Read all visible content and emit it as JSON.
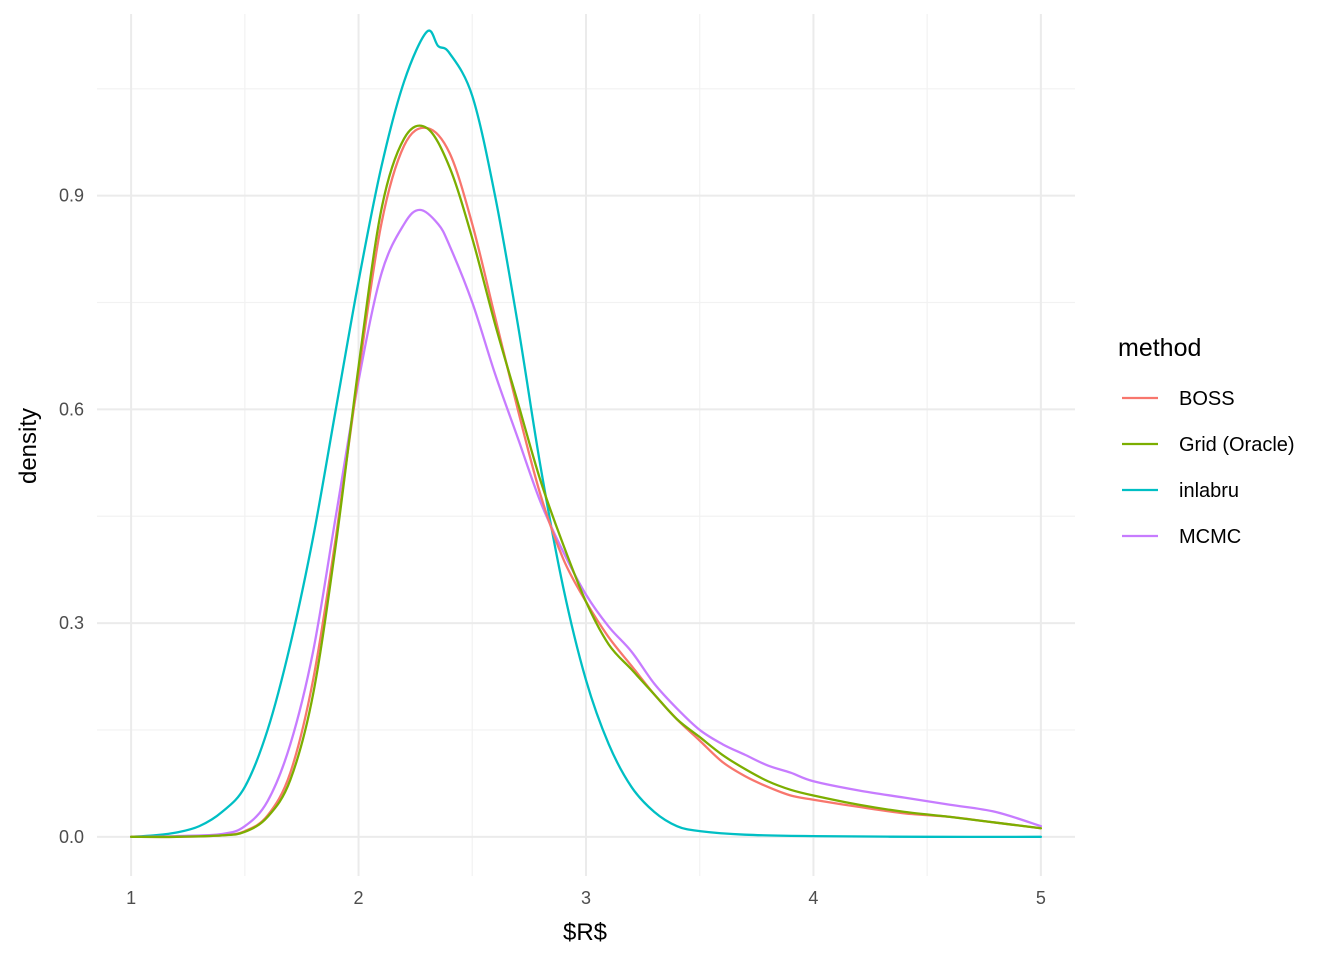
{
  "chart_data": {
    "type": "line",
    "title": "",
    "xlabel": "$R$",
    "ylabel": "density",
    "xlim": [
      0.85,
      5.15
    ],
    "ylim": [
      -0.055,
      1.155
    ],
    "x_ticks": [
      1,
      2,
      3,
      4,
      5
    ],
    "x_tick_labels": [
      "1",
      "2",
      "3",
      "4",
      "5"
    ],
    "y_ticks": [
      0.0,
      0.3,
      0.6,
      0.9
    ],
    "y_tick_labels": [
      "0.0",
      "0.3",
      "0.6",
      "0.9"
    ],
    "grid": true,
    "legend": {
      "title": "method",
      "position": "right"
    },
    "series": [
      {
        "name": "BOSS",
        "color": "#F8766D",
        "x": [
          1.0,
          1.2,
          1.4,
          1.5,
          1.6,
          1.7,
          1.8,
          1.9,
          2.0,
          2.1,
          2.2,
          2.3,
          2.4,
          2.5,
          2.6,
          2.7,
          2.8,
          2.9,
          3.0,
          3.1,
          3.2,
          3.3,
          3.4,
          3.5,
          3.6,
          3.7,
          3.8,
          3.9,
          4.0,
          4.2,
          4.4,
          4.6,
          4.8,
          5.0
        ],
        "y": [
          0.0,
          0.0,
          0.002,
          0.008,
          0.03,
          0.09,
          0.22,
          0.42,
          0.65,
          0.86,
          0.97,
          0.995,
          0.96,
          0.86,
          0.73,
          0.6,
          0.48,
          0.39,
          0.33,
          0.28,
          0.24,
          0.2,
          0.165,
          0.135,
          0.105,
          0.085,
          0.07,
          0.058,
          0.052,
          0.042,
          0.033,
          0.028,
          0.02,
          0.012
        ]
      },
      {
        "name": "Grid (Oracle)",
        "color": "#7CAE00",
        "x": [
          1.0,
          1.2,
          1.4,
          1.5,
          1.6,
          1.7,
          1.8,
          1.9,
          2.0,
          2.1,
          2.2,
          2.3,
          2.4,
          2.5,
          2.6,
          2.7,
          2.8,
          2.9,
          3.0,
          3.1,
          3.2,
          3.3,
          3.4,
          3.5,
          3.6,
          3.7,
          3.8,
          3.9,
          4.0,
          4.2,
          4.4,
          4.6,
          4.8,
          5.0
        ],
        "y": [
          0.0,
          0.0,
          0.002,
          0.007,
          0.028,
          0.08,
          0.2,
          0.41,
          0.66,
          0.88,
          0.98,
          0.995,
          0.94,
          0.84,
          0.72,
          0.61,
          0.5,
          0.41,
          0.33,
          0.27,
          0.235,
          0.2,
          0.165,
          0.14,
          0.115,
          0.095,
          0.078,
          0.066,
          0.058,
          0.045,
          0.035,
          0.028,
          0.02,
          0.012
        ]
      },
      {
        "name": "inlabru",
        "color": "#00BFC4",
        "x": [
          1.0,
          1.1,
          1.2,
          1.3,
          1.4,
          1.5,
          1.6,
          1.7,
          1.8,
          1.9,
          2.0,
          2.1,
          2.2,
          2.3,
          2.35,
          2.4,
          2.5,
          2.6,
          2.7,
          2.8,
          2.9,
          3.0,
          3.1,
          3.2,
          3.3,
          3.4,
          3.5,
          3.7,
          4.0,
          4.5,
          5.0
        ],
        "y": [
          0.0,
          0.002,
          0.006,
          0.015,
          0.035,
          0.07,
          0.15,
          0.27,
          0.42,
          0.6,
          0.78,
          0.94,
          1.06,
          1.13,
          1.11,
          1.1,
          1.04,
          0.9,
          0.72,
          0.52,
          0.35,
          0.22,
          0.13,
          0.07,
          0.035,
          0.015,
          0.008,
          0.003,
          0.001,
          0.0,
          0.0
        ]
      },
      {
        "name": "MCMC",
        "color": "#C77CFF",
        "x": [
          1.0,
          1.2,
          1.4,
          1.5,
          1.6,
          1.7,
          1.8,
          1.9,
          2.0,
          2.1,
          2.2,
          2.27,
          2.35,
          2.4,
          2.5,
          2.6,
          2.7,
          2.8,
          2.9,
          3.0,
          3.1,
          3.2,
          3.3,
          3.4,
          3.5,
          3.6,
          3.7,
          3.8,
          3.9,
          4.0,
          4.2,
          4.4,
          4.6,
          4.8,
          5.0
        ],
        "y": [
          0.0,
          0.001,
          0.004,
          0.015,
          0.05,
          0.13,
          0.26,
          0.45,
          0.64,
          0.79,
          0.86,
          0.88,
          0.86,
          0.83,
          0.75,
          0.65,
          0.56,
          0.47,
          0.4,
          0.34,
          0.295,
          0.26,
          0.215,
          0.18,
          0.15,
          0.13,
          0.115,
          0.1,
          0.09,
          0.078,
          0.065,
          0.055,
          0.045,
          0.035,
          0.015
        ]
      }
    ]
  }
}
